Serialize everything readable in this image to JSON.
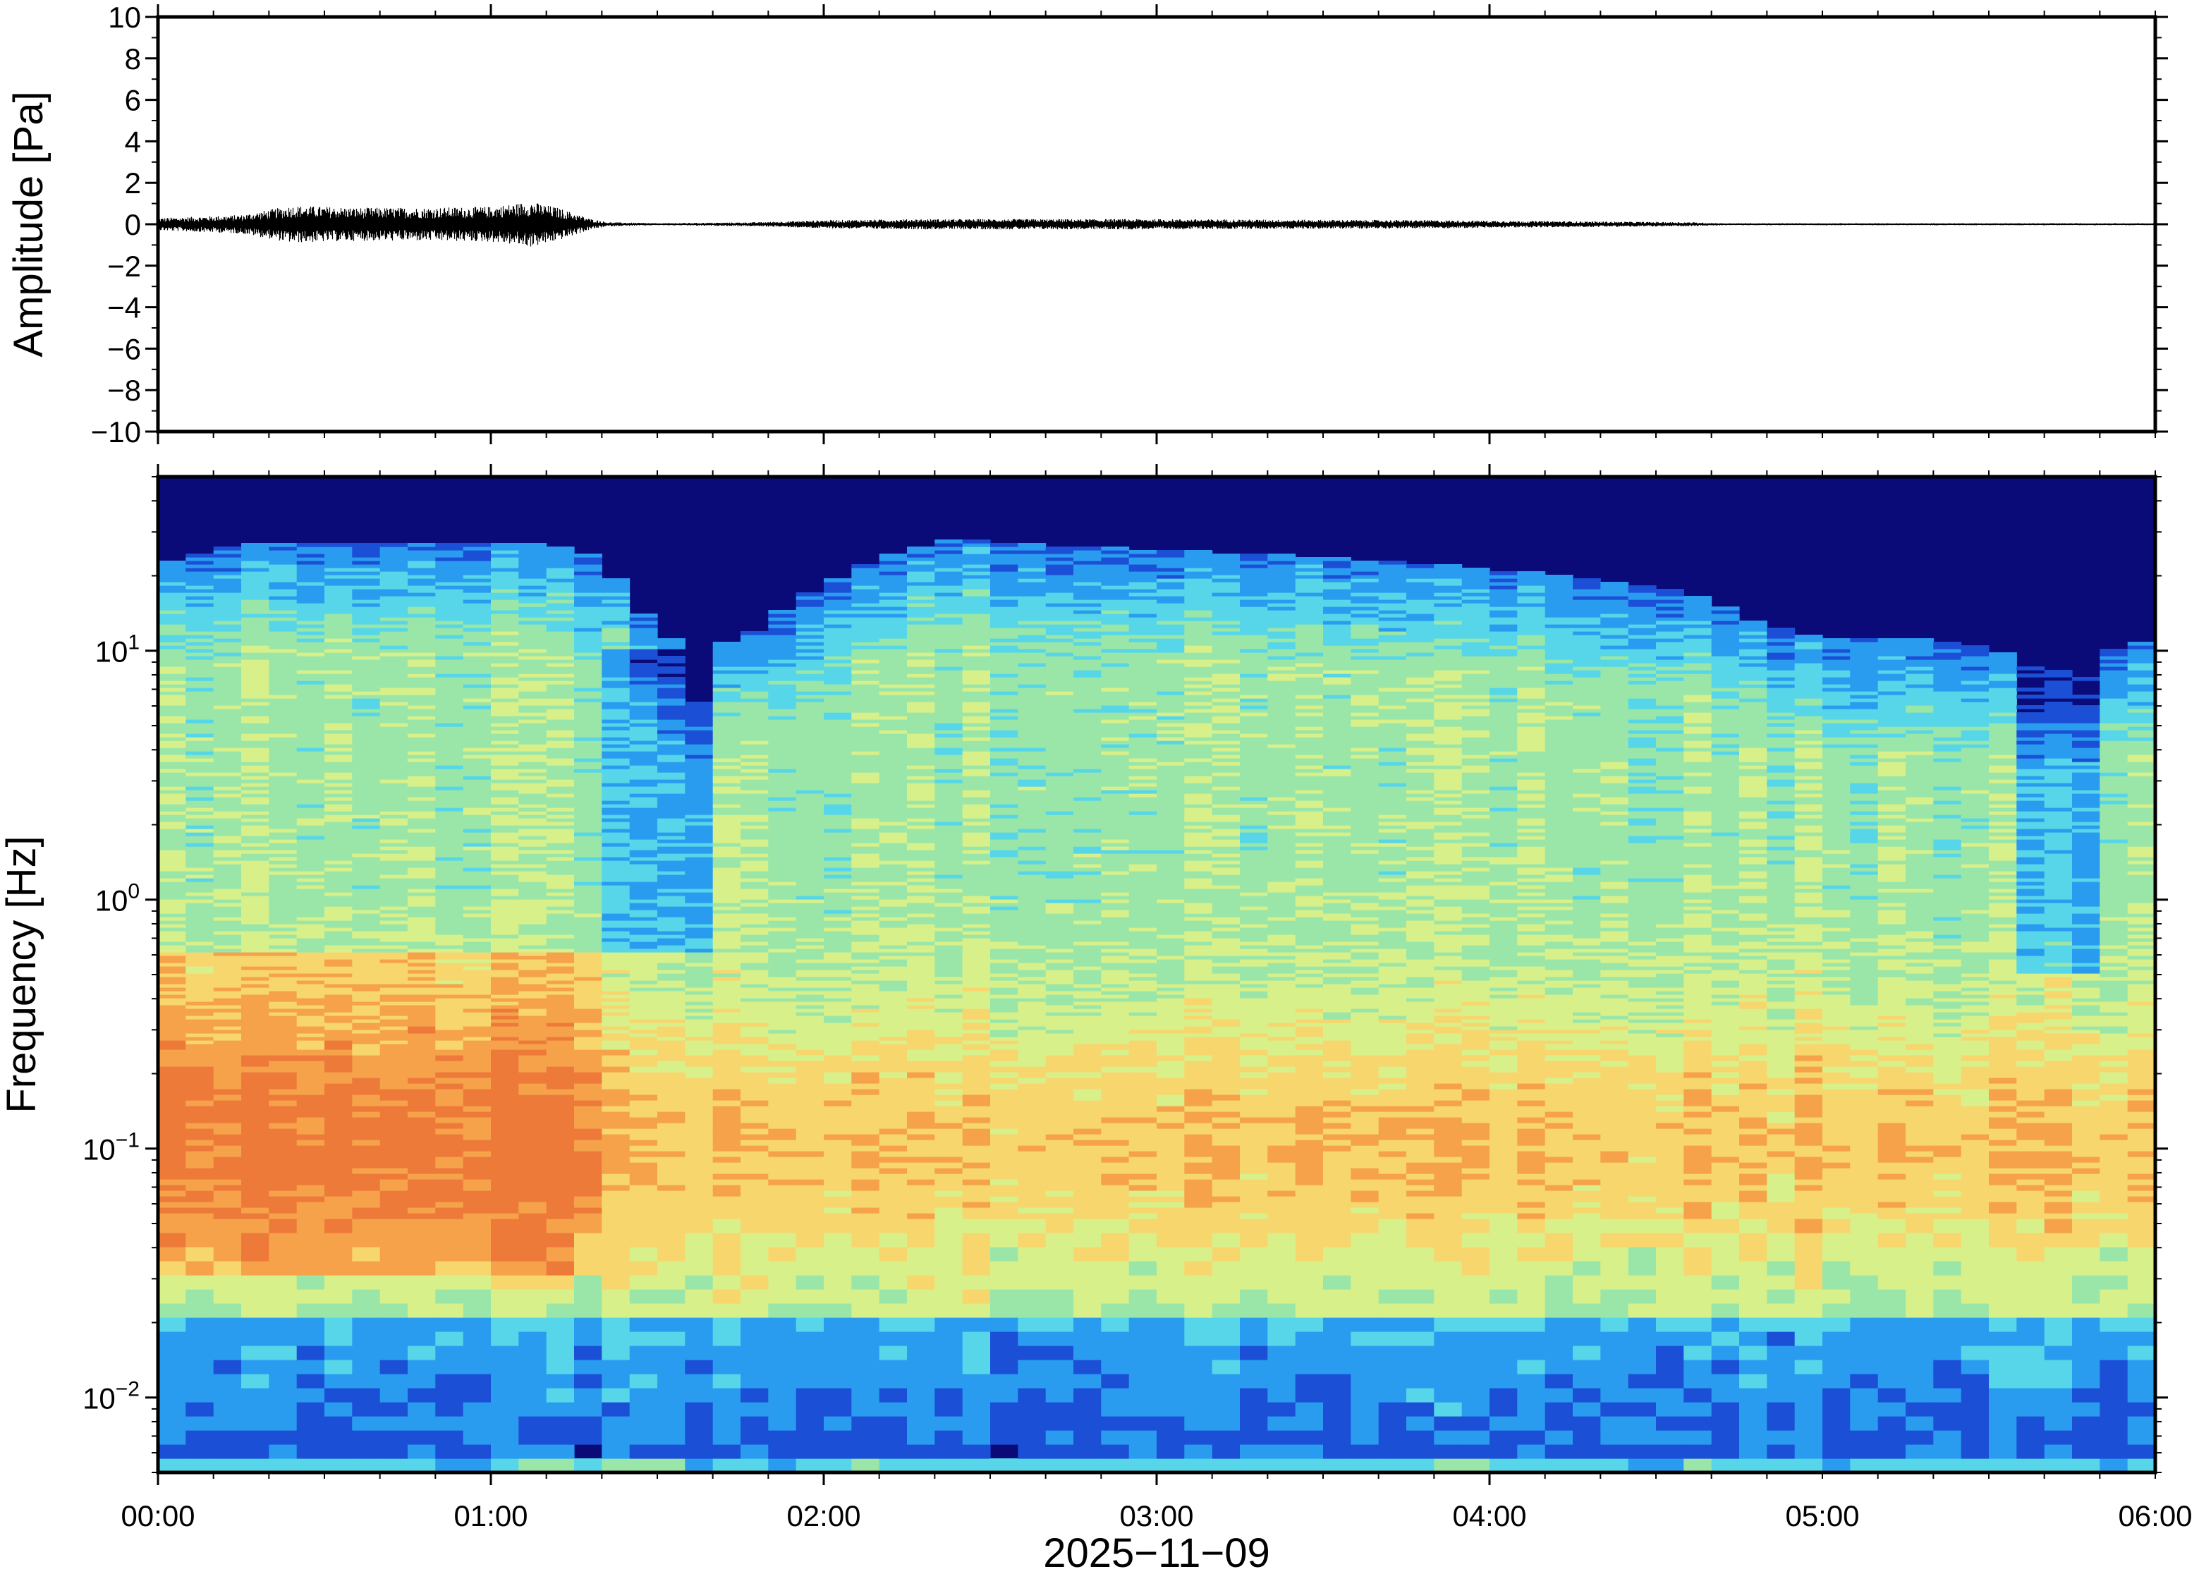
{
  "chart_data": [
    {
      "type": "line",
      "panel": "waveform",
      "ylabel": "Amplitude [Pa]",
      "ylim": [
        -10,
        10
      ],
      "yticks": [
        10,
        8,
        6,
        4,
        2,
        0,
        -2,
        -4,
        -6,
        -8,
        -10
      ],
      "ytick_labels": [
        "10",
        "8",
        "6",
        "4",
        "2",
        "0",
        "−2",
        "−4",
        "−6",
        "−8",
        "−10"
      ],
      "x_unit": "hours since 2025-11-09 00:00",
      "envelope": {
        "x": [
          0.0,
          0.25,
          0.4,
          0.6,
          0.8,
          1.0,
          1.12,
          1.2,
          1.3,
          1.35,
          1.5,
          1.8,
          2.0,
          2.3,
          2.6,
          3.0,
          3.4,
          3.8,
          4.2,
          4.6,
          4.7,
          5.0,
          5.5,
          6.0
        ],
        "max": [
          0.3,
          0.45,
          0.9,
          0.8,
          0.8,
          0.85,
          1.1,
          0.8,
          0.25,
          0.1,
          0.05,
          0.1,
          0.2,
          0.25,
          0.25,
          0.25,
          0.22,
          0.2,
          0.15,
          0.1,
          0.05,
          0.05,
          0.05,
          0.05
        ]
      },
      "line_color": "#000000"
    },
    {
      "type": "heatmap",
      "panel": "spectrogram",
      "ylabel": "Frequency [Hz]",
      "yscale": "log",
      "ylim": [
        0.005,
        50
      ],
      "yticks": [
        0.01,
        0.1,
        1,
        10
      ],
      "ytick_labels": [
        {
          "base": "10",
          "exp": "−2"
        },
        {
          "base": "10",
          "exp": "−1"
        },
        {
          "base": "10",
          "exp": "0"
        },
        {
          "base": "10",
          "exp": "1"
        }
      ],
      "colormap": [
        "#0a0a78",
        "#1b4fd6",
        "#2a9cf0",
        "#56d6e8",
        "#9ae6a8",
        "#d8f08a",
        "#f7d66e",
        "#f5a24a",
        "#ee7a3a"
      ],
      "upper_cutoff_hz": {
        "x": [
          0.0,
          0.2,
          0.5,
          0.8,
          1.1,
          1.3,
          1.45,
          1.6,
          1.8,
          2.0,
          2.2,
          2.4,
          2.7,
          3.0,
          3.4,
          3.8,
          4.2,
          4.6,
          4.8,
          5.0,
          5.3,
          5.5,
          5.7,
          5.85,
          6.0
        ],
        "hz": [
          22,
          26,
          27,
          27,
          27,
          24,
          14,
          9,
          12,
          18,
          24,
          28,
          26,
          25,
          24,
          22,
          20,
          17,
          13,
          11,
          11,
          10,
          8,
          10,
          11
        ]
      },
      "intensity_regions": [
        {
          "t0": 0.0,
          "t1": 1.3,
          "f0": 0.03,
          "f1": 0.6,
          "level": "high"
        },
        {
          "t0": 1.3,
          "t1": 1.65,
          "f0": 0.6,
          "f1": 10,
          "level": "low"
        },
        {
          "t0": 5.6,
          "t1": 5.85,
          "f0": 0.5,
          "f1": 10,
          "level": "low"
        },
        {
          "t0": 0.0,
          "t1": 6.0,
          "f0": 0.005,
          "f1": 0.02,
          "level": "low"
        }
      ]
    }
  ],
  "xaxis": {
    "range": [
      0,
      6
    ],
    "ticks": [
      0,
      1,
      2,
      3,
      4,
      5,
      6
    ],
    "tick_labels": [
      "00:00",
      "01:00",
      "02:00",
      "03:00",
      "04:00",
      "05:00",
      "06:00"
    ],
    "minor_step": 0.1666667,
    "date_label": "2025−11−09"
  }
}
